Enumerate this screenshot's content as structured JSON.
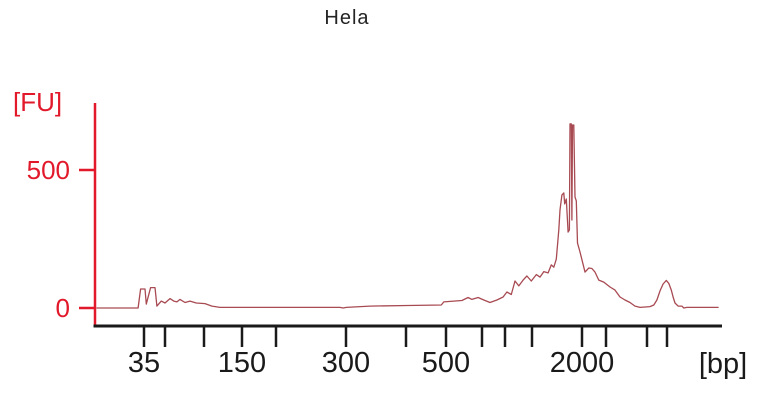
{
  "chart_data": {
    "type": "line",
    "title": "Hela",
    "xlabel": "[bp]",
    "ylabel": "[FU]",
    "x_axis": {
      "unit": "bp",
      "scale": "nonlinear-electrophoresis-migration",
      "labeled_ticks": [
        35,
        150,
        300,
        500,
        2000
      ],
      "ticks": [
        {
          "t": 0.0784,
          "label": "35"
        },
        {
          "t": 0.112,
          "label": ""
        },
        {
          "t": 0.1744,
          "label": ""
        },
        {
          "t": 0.2352,
          "label": "150"
        },
        {
          "t": 0.2896,
          "label": ""
        },
        {
          "t": 0.4016,
          "label": "300"
        },
        {
          "t": 0.4976,
          "label": ""
        },
        {
          "t": 0.5616,
          "label": "500"
        },
        {
          "t": 0.6192,
          "label": ""
        },
        {
          "t": 0.656,
          "label": ""
        },
        {
          "t": 0.6992,
          "label": ""
        },
        {
          "t": 0.7792,
          "label": "2000"
        },
        {
          "t": 0.8176,
          "label": ""
        },
        {
          "t": 0.8832,
          "label": ""
        },
        {
          "t": 0.9152,
          "label": ""
        }
      ]
    },
    "y_axis": {
      "unit": "FU",
      "range": [
        0,
        740
      ],
      "ticks": [
        {
          "fu": 0,
          "label": "0"
        },
        {
          "fu": 500,
          "label": "500"
        }
      ]
    },
    "peaks_estimated": [
      {
        "approx_bp": 35,
        "fu": 69
      },
      {
        "approx_bp": 45,
        "fu": 74
      },
      {
        "approx_bp": 1700,
        "fu": 417
      },
      {
        "approx_bp": 1900,
        "fu": 667
      },
      {
        "approx_bp": 10000,
        "fu": 100
      }
    ],
    "colors": {
      "axis_and_labels": "#e2192b",
      "trace": "#a84a52",
      "x_axis_black": "#1a1a1a",
      "background": "#ffffff"
    },
    "series": [
      {
        "name": "Hela sample trace",
        "points": [
          [
            0.003,
            0
          ],
          [
            0.069,
            0
          ],
          [
            0.073,
            69
          ],
          [
            0.08,
            69
          ],
          [
            0.082,
            14
          ],
          [
            0.089,
            74
          ],
          [
            0.096,
            74
          ],
          [
            0.099,
            7
          ],
          [
            0.106,
            25
          ],
          [
            0.112,
            18
          ],
          [
            0.12,
            34
          ],
          [
            0.126,
            25
          ],
          [
            0.131,
            22
          ],
          [
            0.136,
            31
          ],
          [
            0.144,
            20
          ],
          [
            0.152,
            25
          ],
          [
            0.162,
            18
          ],
          [
            0.176,
            16
          ],
          [
            0.187,
            7
          ],
          [
            0.2,
            2
          ],
          [
            0.392,
            2
          ],
          [
            0.397,
            0
          ],
          [
            0.402,
            2
          ],
          [
            0.44,
            7
          ],
          [
            0.5,
            9
          ],
          [
            0.554,
            11
          ],
          [
            0.558,
            22
          ],
          [
            0.587,
            27
          ],
          [
            0.597,
            38
          ],
          [
            0.603,
            31
          ],
          [
            0.613,
            38
          ],
          [
            0.622,
            29
          ],
          [
            0.632,
            20
          ],
          [
            0.643,
            29
          ],
          [
            0.653,
            40
          ],
          [
            0.659,
            58
          ],
          [
            0.666,
            49
          ],
          [
            0.672,
            98
          ],
          [
            0.678,
            80
          ],
          [
            0.685,
            101
          ],
          [
            0.691,
            116
          ],
          [
            0.698,
            98
          ],
          [
            0.706,
            121
          ],
          [
            0.712,
            112
          ],
          [
            0.718,
            132
          ],
          [
            0.725,
            127
          ],
          [
            0.73,
            156
          ],
          [
            0.734,
            148
          ],
          [
            0.738,
            177
          ],
          [
            0.742,
            283
          ],
          [
            0.744,
            355
          ],
          [
            0.747,
            409
          ],
          [
            0.75,
            417
          ],
          [
            0.7515,
            377
          ],
          [
            0.754,
            395
          ],
          [
            0.757,
            275
          ],
          [
            0.759,
            283
          ],
          [
            0.76,
            667
          ],
          [
            0.762,
            667
          ],
          [
            0.763,
            319
          ],
          [
            0.764,
            663
          ],
          [
            0.766,
            663
          ],
          [
            0.768,
            402
          ],
          [
            0.77,
            388
          ],
          [
            0.772,
            235
          ],
          [
            0.776,
            203
          ],
          [
            0.782,
            148
          ],
          [
            0.784,
            130
          ],
          [
            0.79,
            145
          ],
          [
            0.795,
            143
          ],
          [
            0.8,
            130
          ],
          [
            0.806,
            101
          ],
          [
            0.814,
            94
          ],
          [
            0.824,
            76
          ],
          [
            0.832,
            65
          ],
          [
            0.84,
            40
          ],
          [
            0.848,
            29
          ],
          [
            0.856,
            20
          ],
          [
            0.864,
            7
          ],
          [
            0.872,
            2
          ],
          [
            0.888,
            5
          ],
          [
            0.894,
            11
          ],
          [
            0.899,
            29
          ],
          [
            0.904,
            62
          ],
          [
            0.909,
            87
          ],
          [
            0.914,
            100
          ],
          [
            0.918,
            89
          ],
          [
            0.922,
            65
          ],
          [
            0.925,
            40
          ],
          [
            0.928,
            18
          ],
          [
            0.933,
            7
          ],
          [
            0.939,
            7
          ],
          [
            0.942,
            0
          ],
          [
            0.947,
            2
          ],
          [
            0.997,
            2
          ]
        ]
      }
    ]
  }
}
